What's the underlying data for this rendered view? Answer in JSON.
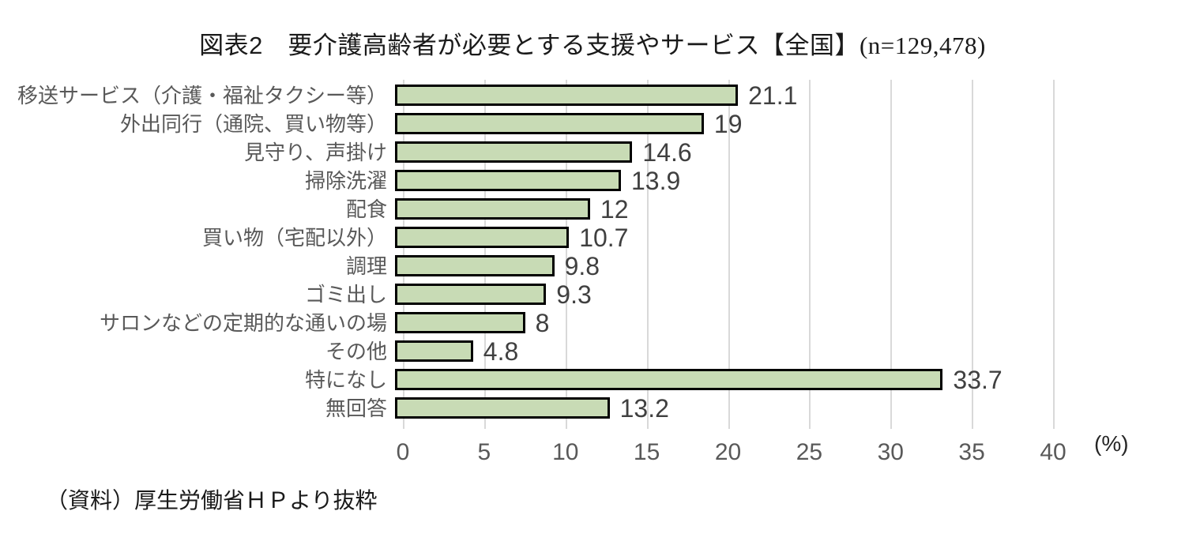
{
  "title": {
    "main": "図表2　要介護高齢者が必要とする支援やサービス【全国】",
    "sample": "(n=129,478)"
  },
  "source_note": "（資料）厚生労働省ＨＰより抜粋",
  "chart_data": {
    "type": "bar",
    "orientation": "horizontal",
    "title": "図表2　要介護高齢者が必要とする支援やサービス【全国】(n=129,478)",
    "categories": [
      "移送サービス（介護・福祉タクシー等）",
      "外出同行（通院、買い物等）",
      "見守り、声掛け",
      "掃除洗濯",
      "配食",
      "買い物（宅配以外）",
      "調理",
      "ゴミ出し",
      "サロンなどの定期的な通いの場",
      "その他",
      "特になし",
      "無回答"
    ],
    "values": [
      21.1,
      19,
      14.6,
      13.9,
      12,
      10.7,
      9.8,
      9.3,
      8,
      4.8,
      33.7,
      13.2
    ],
    "xlabel": "(%)",
    "ylabel": "",
    "xlim": [
      0,
      40
    ],
    "xticks": [
      0,
      5,
      10,
      15,
      20,
      25,
      30,
      35,
      40
    ],
    "grid": true,
    "legend": "none",
    "colors": {
      "bar_fill": "#c8dbb5",
      "bar_border": "#000000",
      "gridline": "#d9d9d9",
      "category_label": "#595959",
      "value_label": "#404040",
      "tick_label": "#595959",
      "title_text": "#1a1a1a"
    }
  }
}
